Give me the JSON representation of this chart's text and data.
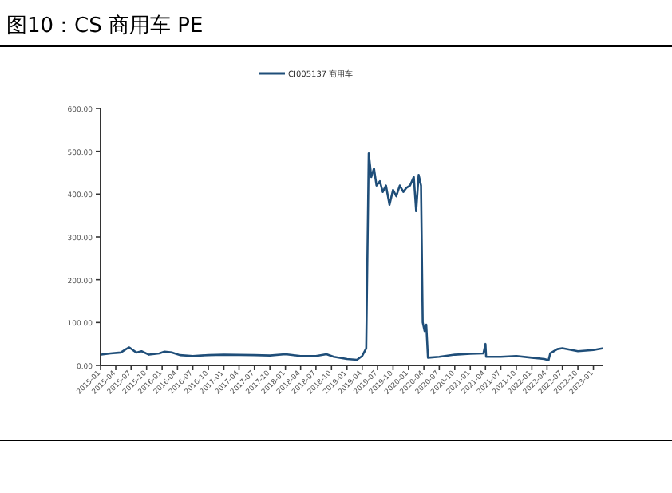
{
  "chart_data": {
    "type": "line",
    "title": "图10：CS 商用车 PE",
    "legend": "top",
    "x": [
      "2015-01-05",
      "2015-03-01",
      "2015-05-01",
      "2015-06-01",
      "2015-06-20",
      "2015-08-01",
      "2015-09-01",
      "2015-10-15",
      "2015-12-15",
      "2016-01-15",
      "2016-03-01",
      "2016-04-15",
      "2016-07-01",
      "2016-10-01",
      "2017-01-01",
      "2017-07-01",
      "2017-10-01",
      "2018-01-01",
      "2018-04-01",
      "2018-07-01",
      "2018-09-01",
      "2018-10-15",
      "2019-01-01",
      "2019-03-01",
      "2019-04-01",
      "2019-04-25",
      "2019-05-10",
      "2019-05-25",
      "2019-06-10",
      "2019-06-25",
      "2019-07-15",
      "2019-08-01",
      "2019-08-20",
      "2019-09-10",
      "2019-10-01",
      "2019-10-20",
      "2019-11-10",
      "2019-12-01",
      "2019-12-20",
      "2020-01-10",
      "2020-02-01",
      "2020-02-15",
      "2020-03-01",
      "2020-03-15",
      "2020-03-25",
      "2020-04-05",
      "2020-04-15",
      "2020-04-25",
      "2020-07-01",
      "2020-10-01",
      "2021-01-01",
      "2021-03-20",
      "2021-04-01",
      "2021-04-05",
      "2021-07-01",
      "2021-10-01",
      "2022-01-01",
      "2022-03-15",
      "2022-04-10",
      "2022-04-20",
      "2022-06-01",
      "2022-07-01",
      "2022-10-01",
      "2023-01-01",
      "2023-03-01"
    ],
    "series": [
      {
        "name": "CI005137 商用车",
        "color": "#1f4e79",
        "values": [
          25,
          28,
          30,
          38,
          42,
          30,
          33,
          25,
          28,
          32,
          30,
          24,
          22,
          24,
          25,
          24,
          23,
          26,
          22,
          22,
          26,
          20,
          15,
          13,
          22,
          40,
          495,
          440,
          460,
          420,
          430,
          405,
          420,
          375,
          410,
          395,
          420,
          405,
          415,
          420,
          440,
          360,
          445,
          420,
          100,
          80,
          95,
          18,
          20,
          25,
          27,
          28,
          50,
          20,
          20,
          22,
          18,
          15,
          12,
          28,
          38,
          40,
          33,
          36,
          40
        ]
      }
    ],
    "xlim": [
      "2015-01",
      "2023-03"
    ],
    "xticks": [
      "2015-01",
      "2015-04",
      "2015-07",
      "2015-10",
      "2016-01",
      "2016-04",
      "2016-07",
      "2016-10",
      "2017-01",
      "2017-04",
      "2017-07",
      "2017-10",
      "2018-01",
      "2018-04",
      "2018-07",
      "2018-10",
      "2019-01",
      "2019-04",
      "2019-07",
      "2019-10",
      "2020-01",
      "2020-04",
      "2020-07",
      "2020-10",
      "2021-01",
      "2021-04",
      "2021-07",
      "2021-10",
      "2022-01",
      "2022-04",
      "2022-07",
      "2022-10",
      "2023-01"
    ],
    "ylim": [
      0,
      600
    ],
    "yticks": [
      {
        "value": 0,
        "label": "0.00"
      },
      {
        "value": 100,
        "label": "100.00"
      },
      {
        "value": 200,
        "label": "200.00"
      },
      {
        "value": 300,
        "label": "300.00"
      },
      {
        "value": 400,
        "label": "400.00"
      },
      {
        "value": 500,
        "label": "500.00"
      },
      {
        "value": 600,
        "label": "600.00"
      }
    ],
    "grid": false
  }
}
